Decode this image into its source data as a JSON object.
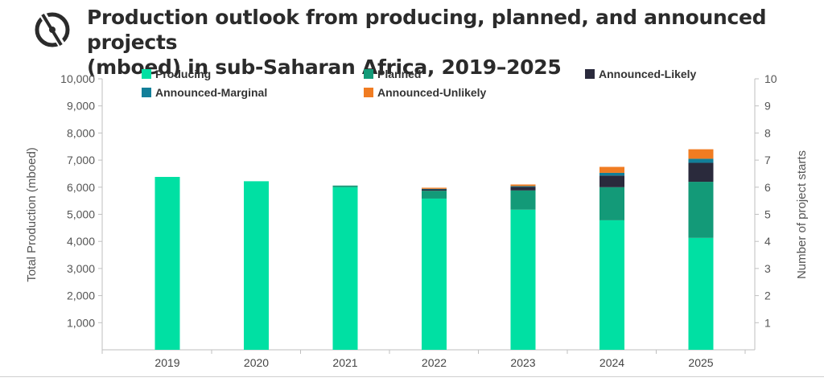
{
  "title": {
    "line1": "Production outlook from producing, planned, and announced projects",
    "line2": "(mboed) in sub-Saharan Africa, 2019–2025"
  },
  "chart_data": {
    "type": "bar",
    "stacked": true,
    "categories": [
      "2019",
      "2020",
      "2021",
      "2022",
      "2023",
      "2024",
      "2025"
    ],
    "series": [
      {
        "name": "Producing",
        "color": "#00e0a3",
        "values": [
          6380,
          6220,
          6000,
          5580,
          5170,
          4780,
          4130
        ]
      },
      {
        "name": "Planned",
        "color": "#139a78",
        "values": [
          0,
          0,
          60,
          290,
          710,
          1220,
          2070
        ]
      },
      {
        "name": "Announced-Likely",
        "color": "#2a2a3c",
        "values": [
          0,
          0,
          0,
          50,
          130,
          430,
          700
        ]
      },
      {
        "name": "Announced-Marginal",
        "color": "#127f99",
        "values": [
          0,
          0,
          0,
          20,
          30,
          100,
          150
        ]
      },
      {
        "name": "Announced-Unlikely",
        "color": "#f07c22",
        "values": [
          0,
          0,
          0,
          40,
          60,
          220,
          350
        ]
      }
    ],
    "ylabel": "Total Production  (mboed)",
    "y2label": "Number of project starts",
    "ylim": [
      0,
      10000
    ],
    "y_ticks": [
      "1,000",
      "2,000",
      "3,000",
      "4,000",
      "5,000",
      "6,000",
      "7,000",
      "8,000",
      "9,000",
      "10,000"
    ],
    "y2lim": [
      0,
      10
    ],
    "y2_ticks": [
      "1",
      "2",
      "3",
      "4",
      "5",
      "6",
      "7",
      "8",
      "9",
      "10"
    ],
    "legend_position": "top",
    "grid": false
  }
}
